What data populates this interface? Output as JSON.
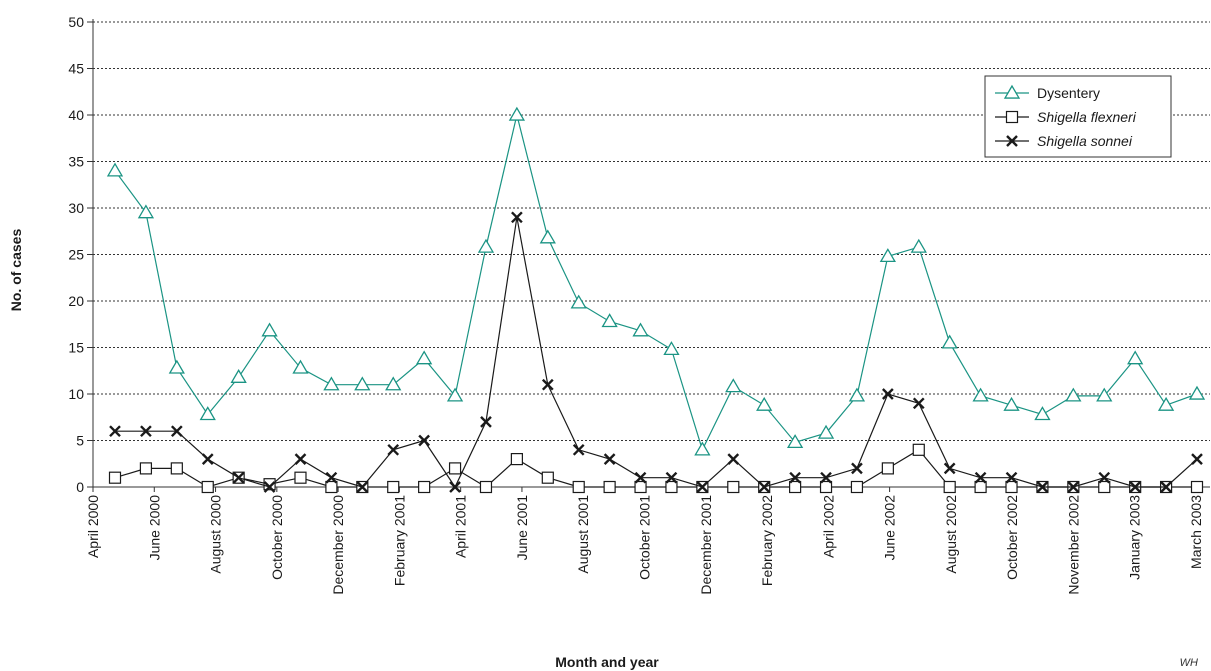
{
  "chart_data": {
    "type": "line",
    "xlabel": "Month and year",
    "ylabel": "No. of cases",
    "ylim": [
      0,
      50
    ],
    "yticks": [
      0,
      5,
      10,
      15,
      20,
      25,
      30,
      35,
      40,
      45,
      50
    ],
    "grid": "horizontal dotted",
    "legend_position": "top-right",
    "x_tick_labels": [
      "April 2000",
      "June 2000",
      "August 2000",
      "October 2000",
      "December 2000",
      "February 2001",
      "April 2001",
      "June 2001",
      "August 2001",
      "October 2001",
      "December 2001",
      "February 2002",
      "April 2002",
      "June 2002",
      "August 2002",
      "October 2002",
      "November 2002",
      "January 2003",
      "March 2003"
    ],
    "series": [
      {
        "name": "Dysentery",
        "marker": "triangle",
        "color": "#1b9484",
        "values": [
          34,
          29.5,
          12.8,
          7.8,
          11.8,
          16.8,
          12.8,
          11,
          11,
          11,
          13.8,
          9.8,
          25.8,
          40,
          26.8,
          19.8,
          17.8,
          16.8,
          14.8,
          4,
          10.8,
          8.8,
          4.8,
          5.8,
          9.8,
          24.8,
          25.8,
          15.5,
          9.8,
          8.8,
          7.8,
          9.8,
          9.8,
          13.8,
          8.8,
          10
        ]
      },
      {
        "name": "Shigella flexneri",
        "marker": "square",
        "color": "#1a1a1a",
        "values": [
          1,
          2,
          2,
          0,
          1,
          0.3,
          1,
          0,
          0,
          0,
          0,
          2,
          0,
          3,
          1,
          0,
          0,
          0,
          0,
          0,
          0,
          0,
          0,
          0,
          0,
          2,
          4,
          0,
          0,
          0,
          0,
          0,
          0,
          0,
          0,
          0
        ]
      },
      {
        "name": "Shigella sonnei",
        "marker": "x",
        "color": "#1a1a1a",
        "values": [
          6,
          6,
          6,
          3,
          1,
          0,
          3,
          1,
          0,
          4,
          5,
          0,
          7,
          29,
          11,
          4,
          3,
          1,
          1,
          0,
          3,
          0,
          1,
          1,
          2,
          10,
          9,
          2,
          1,
          1,
          0,
          0,
          1,
          0,
          0,
          3
        ]
      }
    ]
  },
  "watermark": "WH"
}
